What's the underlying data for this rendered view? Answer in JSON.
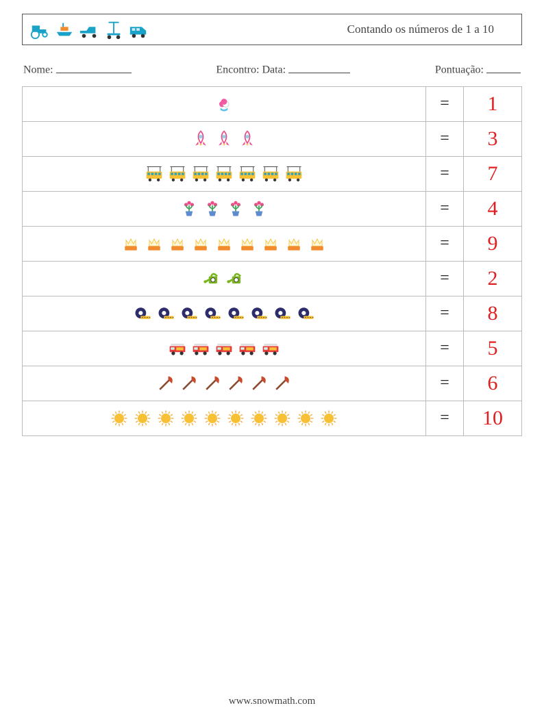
{
  "title": "Contando os números de 1 a 10",
  "labels": {
    "name": "Nome:",
    "encounter": "Encontro: Data:",
    "score": "Pontuação:"
  },
  "blank_widths": {
    "name": 110,
    "date": 90,
    "score": 50
  },
  "header_icons": [
    "tractor",
    "boat",
    "pickup",
    "scooter",
    "van"
  ],
  "header_icon_size": 30,
  "header_icon_color": "#1aa3c7",
  "row_icon_size": 28,
  "answer_color": "#e02020",
  "border_color": "#bbb",
  "rows": [
    {
      "icon": "icecream",
      "count": 1,
      "eq": "=",
      "answer": "1"
    },
    {
      "icon": "rocket",
      "count": 3,
      "eq": "=",
      "answer": "3"
    },
    {
      "icon": "bus",
      "count": 7,
      "eq": "=",
      "answer": "7"
    },
    {
      "icon": "flowerpot",
      "count": 4,
      "eq": "=",
      "answer": "4"
    },
    {
      "icon": "crownbox",
      "count": 9,
      "eq": "=",
      "answer": "9"
    },
    {
      "icon": "watercan",
      "count": 2,
      "eq": "=",
      "answer": "2"
    },
    {
      "icon": "tape",
      "count": 8,
      "eq": "=",
      "answer": "8"
    },
    {
      "icon": "firetruck",
      "count": 5,
      "eq": "=",
      "answer": "5"
    },
    {
      "icon": "axe",
      "count": 6,
      "eq": "=",
      "answer": "6"
    },
    {
      "icon": "sun",
      "count": 10,
      "eq": "=",
      "answer": "10"
    }
  ],
  "footer": "www.snowmath.com",
  "icon_palette": {
    "icecream": {
      "a": "#f25aa3",
      "b": "#5ec2e6",
      "c": "#ffffff"
    },
    "rocket": {
      "a": "#e94f8a",
      "b": "#f7c84b",
      "c": "#8fd3e8"
    },
    "bus": {
      "a": "#f7c035",
      "b": "#2aa3c0",
      "c": "#333"
    },
    "flowerpot": {
      "a": "#e94f8a",
      "b": "#3aa655",
      "c": "#5e8bcf"
    },
    "crownbox": {
      "a": "#f7c035",
      "b": "#f28a2e",
      "c": "#fff7d6"
    },
    "watercan": {
      "a": "#7ab51d",
      "b": "#333",
      "c": "#ffffff"
    },
    "tape": {
      "a": "#f7c035",
      "b": "#2d2d6b",
      "c": "#333"
    },
    "firetruck": {
      "a": "#e43b3b",
      "b": "#f7c035",
      "c": "#333"
    },
    "axe": {
      "a": "#c94b2e",
      "b": "#8a4a2e",
      "c": "#555"
    },
    "sun": {
      "a": "#f7c035",
      "b": "#f2a93b",
      "c": "#fff"
    }
  }
}
